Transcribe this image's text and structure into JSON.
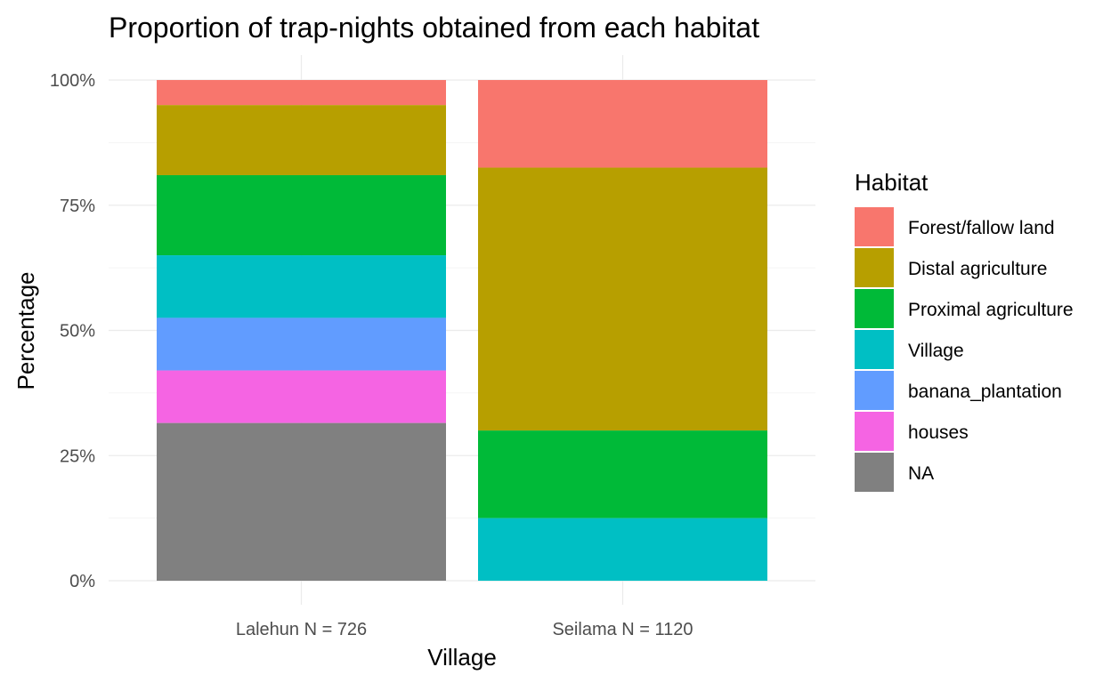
{
  "chart_data": {
    "type": "bar",
    "stacked": true,
    "normalized": true,
    "title": "Proportion of trap-nights obtained from each habitat",
    "xlabel": "Village",
    "ylabel": "Percentage",
    "categories": [
      "Lalehun N = 726",
      "Seilama N = 1120"
    ],
    "y_ticks": [
      "0%",
      "25%",
      "50%",
      "75%",
      "100%"
    ],
    "ylim": [
      0,
      1
    ],
    "grid": true,
    "legend": {
      "title": "Habitat",
      "position": "right"
    },
    "series": [
      {
        "name": "Forest/fallow land",
        "color": "#F8766D",
        "values": [
          0.05,
          0.175
        ]
      },
      {
        "name": "Distal agriculture",
        "color": "#B79F00",
        "values": [
          0.14,
          0.525
        ]
      },
      {
        "name": "Proximal agriculture",
        "color": "#00BA38",
        "values": [
          0.16,
          0.175
        ]
      },
      {
        "name": "Village",
        "color": "#00BFC4",
        "values": [
          0.125,
          0.125
        ]
      },
      {
        "name": "banana_plantation",
        "color": "#619CFF",
        "values": [
          0.105,
          0
        ]
      },
      {
        "name": "houses",
        "color": "#F564E3",
        "values": [
          0.105,
          0
        ]
      },
      {
        "name": "NA",
        "color": "#808080",
        "values": [
          0.315,
          0
        ]
      }
    ]
  }
}
